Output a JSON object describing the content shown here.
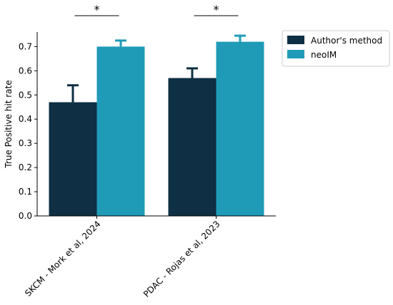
{
  "chart_data": {
    "type": "bar",
    "title": "",
    "xlabel": "",
    "ylabel": "True Positive hit rate",
    "ylim": [
      0,
      0.76
    ],
    "yticks": [
      0.0,
      0.1,
      0.2,
      0.3,
      0.4,
      0.5,
      0.6,
      0.7
    ],
    "categories": [
      "SKCM - Mork et al, 2024",
      "PDAC - Rojas et al, 2023"
    ],
    "series": [
      {
        "name": "Author's method",
        "color": "#0e2f44",
        "values": [
          0.47,
          0.57
        ],
        "errors": [
          0.07,
          0.04
        ]
      },
      {
        "name": "neoIM",
        "color": "#1f9bb7",
        "values": [
          0.7,
          0.72
        ],
        "errors": [
          0.025,
          0.025
        ]
      }
    ],
    "significance": [
      {
        "category": 0,
        "label": "*"
      },
      {
        "category": 1,
        "label": "*"
      }
    ],
    "grid": false,
    "legend_position": "top-right"
  }
}
